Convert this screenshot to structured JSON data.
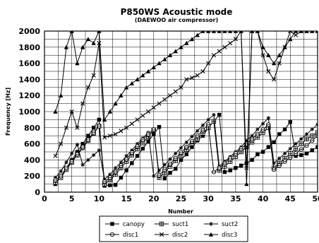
{
  "chart_data": {
    "type": "line",
    "title": "P850WS Acoustic mode",
    "subtitle": "(DAEWOO air compressor)",
    "xlabel": "Number",
    "ylabel": "Frequency [Hz]",
    "xlim": [
      0,
      50
    ],
    "ylim": [
      0,
      2000
    ],
    "x_ticks": [
      0,
      5,
      10,
      15,
      20,
      25,
      30,
      35,
      40,
      45,
      50
    ],
    "y_ticks": [
      0,
      200,
      400,
      600,
      800,
      1000,
      1200,
      1400,
      1600,
      1800,
      2000
    ],
    "grid": true,
    "legend_position": "bottom",
    "series": [
      {
        "name": "canopy",
        "marker": "square-filled",
        "x": [
          2,
          3,
          4,
          5,
          6,
          7,
          8,
          9,
          10,
          11,
          12,
          13,
          14,
          15,
          16,
          17,
          18,
          19,
          20,
          21,
          22,
          23,
          24,
          25,
          26,
          27,
          28,
          29,
          30,
          31,
          32,
          33,
          34,
          35,
          36,
          37,
          38,
          39,
          40,
          41,
          42,
          43,
          44,
          45,
          46,
          47,
          48,
          49,
          50
        ],
        "y": [
          100,
          200,
          300,
          400,
          500,
          600,
          700,
          800,
          900,
          80,
          85,
          90,
          180,
          270,
          360,
          450,
          540,
          630,
          720,
          810,
          170,
          240,
          290,
          400,
          470,
          560,
          640,
          700,
          800,
          880,
          960,
          250,
          270,
          300,
          330,
          360,
          400,
          470,
          500,
          560,
          620,
          720,
          780,
          870,
          450,
          460,
          480,
          520,
          560
        ]
      },
      {
        "name": "suct1",
        "marker": "square-cross",
        "x": [
          2,
          3,
          4,
          5,
          6,
          7,
          8,
          9,
          10,
          11,
          12,
          13,
          14,
          15,
          16,
          17,
          18,
          19,
          20,
          21,
          22,
          23,
          24,
          25,
          26,
          27,
          28,
          29,
          30,
          31,
          32,
          33,
          34,
          35,
          36,
          37,
          38,
          39,
          40,
          41,
          42,
          43,
          44,
          45,
          46,
          47,
          48,
          49,
          50
        ],
        "y": [
          120,
          180,
          280,
          370,
          460,
          550,
          640,
          730,
          820,
          100,
          150,
          220,
          300,
          380,
          460,
          540,
          610,
          690,
          770,
          180,
          240,
          320,
          390,
          460,
          530,
          600,
          660,
          730,
          800,
          880,
          270,
          320,
          380,
          440,
          500,
          560,
          620,
          680,
          740,
          800,
          300,
          360,
          420,
          480,
          540,
          600,
          660,
          700,
          740
        ]
      },
      {
        "name": "suct2",
        "marker": "star",
        "x": [
          2,
          3,
          4,
          5,
          6,
          7,
          8,
          9,
          10,
          11,
          12,
          13,
          14,
          15,
          16,
          17,
          18,
          19,
          20,
          21,
          22,
          23,
          24,
          25,
          26,
          27,
          28,
          29,
          30,
          31,
          32,
          33,
          34,
          35,
          36,
          37,
          38,
          39,
          40,
          41,
          42,
          43,
          44,
          45,
          46,
          47,
          48,
          49,
          50
        ],
        "y": [
          180,
          260,
          370,
          480,
          590,
          340,
          400,
          460,
          520,
          160,
          220,
          300,
          370,
          450,
          520,
          600,
          670,
          740,
          200,
          270,
          340,
          410,
          480,
          550,
          620,
          690,
          760,
          830,
          900,
          960,
          320,
          380,
          440,
          500,
          560,
          640,
          700,
          780,
          850,
          920,
          360,
          420,
          480,
          540,
          600,
          660,
          720,
          780,
          840
        ]
      },
      {
        "name": "disc1",
        "marker": "circle-line",
        "x": [
          2,
          3,
          4,
          5,
          6,
          7,
          8,
          9,
          10,
          11,
          12,
          13,
          14,
          15,
          16,
          17,
          18,
          19,
          20,
          21,
          22,
          23,
          24,
          25,
          26,
          27,
          28,
          29,
          30,
          31,
          32,
          33,
          34,
          35,
          36,
          37,
          38,
          39,
          40,
          41,
          42,
          43,
          44,
          45,
          46,
          47,
          48,
          49,
          50
        ],
        "y": [
          150,
          200,
          300,
          380,
          470,
          560,
          650,
          740,
          820,
          130,
          180,
          250,
          330,
          410,
          490,
          570,
          650,
          720,
          780,
          210,
          280,
          350,
          420,
          490,
          560,
          630,
          700,
          770,
          840,
          250,
          300,
          360,
          420,
          480,
          540,
          600,
          660,
          720,
          780,
          840,
          280,
          330,
          380,
          430,
          480,
          530,
          580,
          640,
          700
        ]
      },
      {
        "name": "disc2",
        "marker": "x-cross",
        "x": [
          2,
          3,
          4,
          5,
          6,
          7,
          8,
          9,
          10,
          11,
          12,
          13,
          14,
          15,
          16,
          17,
          18,
          19,
          20,
          21,
          22,
          23,
          24,
          25,
          26,
          27,
          28,
          29,
          30,
          31,
          32,
          33,
          34,
          35,
          36,
          37,
          38,
          39,
          40,
          41,
          42,
          43,
          44,
          45,
          46,
          47,
          48,
          49,
          50
        ],
        "y": [
          450,
          600,
          800,
          1000,
          800,
          1100,
          1300,
          1450,
          1850,
          680,
          700,
          720,
          760,
          800,
          850,
          900,
          950,
          1000,
          1050,
          1100,
          1150,
          1200,
          1250,
          1300,
          1400,
          1420,
          1450,
          1500,
          1600,
          1700,
          1750,
          1800,
          1850,
          1900,
          2000,
          300,
          2000,
          2000,
          1700,
          1500,
          1400,
          1600,
          1800,
          2000,
          1950,
          2000,
          2000,
          2000,
          2000
        ]
      },
      {
        "name": "disc3",
        "marker": "triangle-filled",
        "x": [
          2,
          3,
          4,
          5,
          6,
          7,
          8,
          9,
          10,
          11,
          12,
          13,
          14,
          15,
          16,
          17,
          18,
          19,
          20,
          21,
          22,
          23,
          24,
          25,
          26,
          27,
          28,
          29,
          30,
          31,
          32,
          33,
          34,
          35,
          36,
          37,
          38,
          39,
          40,
          41,
          42,
          43,
          44,
          45,
          46,
          47,
          48,
          49,
          50
        ],
        "y": [
          1000,
          1200,
          1800,
          2000,
          1600,
          1800,
          1900,
          1850,
          2000,
          900,
          1000,
          1100,
          1200,
          1300,
          1350,
          1400,
          1450,
          1500,
          1550,
          1600,
          1650,
          1700,
          1750,
          1800,
          1850,
          1900,
          1950,
          2000,
          2000,
          2000,
          2000,
          2000,
          2000,
          2000,
          2000,
          100,
          2000,
          2000,
          1800,
          1700,
          1600,
          1700,
          1800,
          1900,
          2000,
          2000,
          2000,
          2000,
          2000
        ]
      }
    ]
  }
}
